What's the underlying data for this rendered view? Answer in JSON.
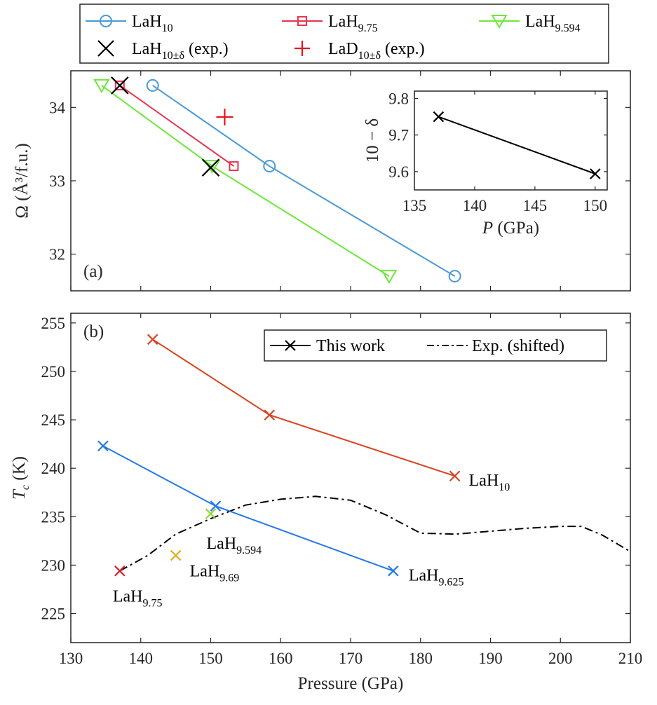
{
  "chart_data": [
    {
      "panel": "(a)",
      "type": "line",
      "ylabel": "Ω (Å³/f.u.)",
      "xlim": [
        130,
        210
      ],
      "ylim": [
        31.5,
        34.5
      ],
      "yticks": [
        32,
        33,
        34
      ],
      "series": [
        {
          "name": "LaH10",
          "label_base": "LaH",
          "label_sub": "10",
          "color": "#4a9ad6",
          "marker": "circle",
          "x": [
            141.7,
            158.4,
            184.9
          ],
          "y": [
            34.3,
            33.2,
            31.7
          ]
        },
        {
          "name": "LaH9.75",
          "label_base": "LaH",
          "label_sub": "9.75",
          "color": "#e8344f",
          "marker": "square",
          "x": [
            137.0,
            153.3
          ],
          "y": [
            34.3,
            33.2
          ]
        },
        {
          "name": "LaH9.594",
          "label_base": "LaH",
          "label_sub": "9.594",
          "color": "#6ee83a",
          "marker": "triangle-down",
          "x": [
            134.4,
            150.2,
            175.5
          ],
          "y": [
            34.3,
            33.2,
            31.7
          ]
        }
      ],
      "experimental": [
        {
          "name": "LaH10±δ (exp.)",
          "label_base": "LaH",
          "label_sub": "10±δ",
          "label_suffix": " (exp.)",
          "color": "#000000",
          "marker": "x",
          "points": [
            {
              "x": 137.0,
              "y": 34.3
            },
            {
              "x": 150.0,
              "y": 33.18
            }
          ]
        },
        {
          "name": "LaD10±δ (exp.)",
          "label_base": "LaD",
          "label_sub": "10±δ",
          "label_suffix": " (exp.)",
          "color": "#e8141e",
          "marker": "plus",
          "points": [
            {
              "x": 152.0,
              "y": 33.87
            }
          ]
        }
      ],
      "legend_position": "top (outside), 3 columns",
      "inset": {
        "type": "line",
        "xlabel_italic": "P",
        "xlabel_rest": " (GPa)",
        "ylabel": "10 − δ",
        "xlim": [
          135,
          151
        ],
        "ylim": [
          9.55,
          9.82
        ],
        "xticks": [
          135,
          140,
          145,
          150
        ],
        "yticks": [
          9.6,
          9.7,
          9.8
        ],
        "x": [
          137,
          150
        ],
        "y": [
          9.75,
          9.594
        ],
        "color": "#000000",
        "marker": "x"
      }
    },
    {
      "panel": "(b)",
      "type": "line",
      "xlabel": "Pressure (GPa)",
      "ylabel_italic": "T",
      "ylabel_sub": "c",
      "ylabel_rest": " (K)",
      "xlim": [
        130,
        210
      ],
      "ylim": [
        222,
        256
      ],
      "xticks": [
        130,
        140,
        150,
        160,
        170,
        180,
        190,
        200,
        210
      ],
      "yticks": [
        225,
        230,
        235,
        240,
        245,
        250,
        255
      ],
      "series": [
        {
          "name": "LaH10",
          "label_base": "LaH",
          "label_sub": "10",
          "color": "#d9431f",
          "x": [
            141.7,
            158.4,
            184.9
          ],
          "y": [
            253.3,
            245.5,
            239.2
          ]
        },
        {
          "name": "LaH9.625",
          "label_base": "LaH",
          "label_sub": "9.625",
          "color": "#2379e6",
          "x": [
            134.6,
            150.7,
            176.1
          ],
          "y": [
            242.3,
            236.1,
            229.4
          ]
        }
      ],
      "points": [
        {
          "name": "LaH9.75",
          "label_base": "LaH",
          "label_sub": "9.75",
          "color": "#d9222b",
          "x": 137.0,
          "y": 229.4
        },
        {
          "name": "LaH9.69",
          "label_base": "LaH",
          "label_sub": "9.69",
          "color": "#e8a81e",
          "x": 145.0,
          "y": 231.0
        },
        {
          "name": "LaH9.594",
          "label_base": "LaH",
          "label_sub": "9.594",
          "color": "#8ed82f",
          "x": 150.0,
          "y": 235.3
        }
      ],
      "experimental_shifted": {
        "name": "Exp. (shifted)",
        "color": "#000000",
        "style": "dash-dot",
        "x": [
          137.0,
          141,
          145,
          150,
          155,
          160,
          165,
          170,
          175,
          180,
          185,
          190,
          195,
          200,
          203,
          206,
          210
        ],
        "y": [
          229.4,
          231.0,
          233.2,
          234.8,
          236.2,
          236.8,
          237.1,
          236.7,
          235.2,
          233.3,
          233.2,
          233.5,
          233.8,
          234.0,
          234.0,
          233.1,
          231.4
        ]
      },
      "legend": [
        {
          "label": "This work",
          "marker": "x-line"
        },
        {
          "label": "Exp. (shifted)",
          "marker": "dash-dot"
        }
      ],
      "legend_position": "top-right"
    }
  ]
}
